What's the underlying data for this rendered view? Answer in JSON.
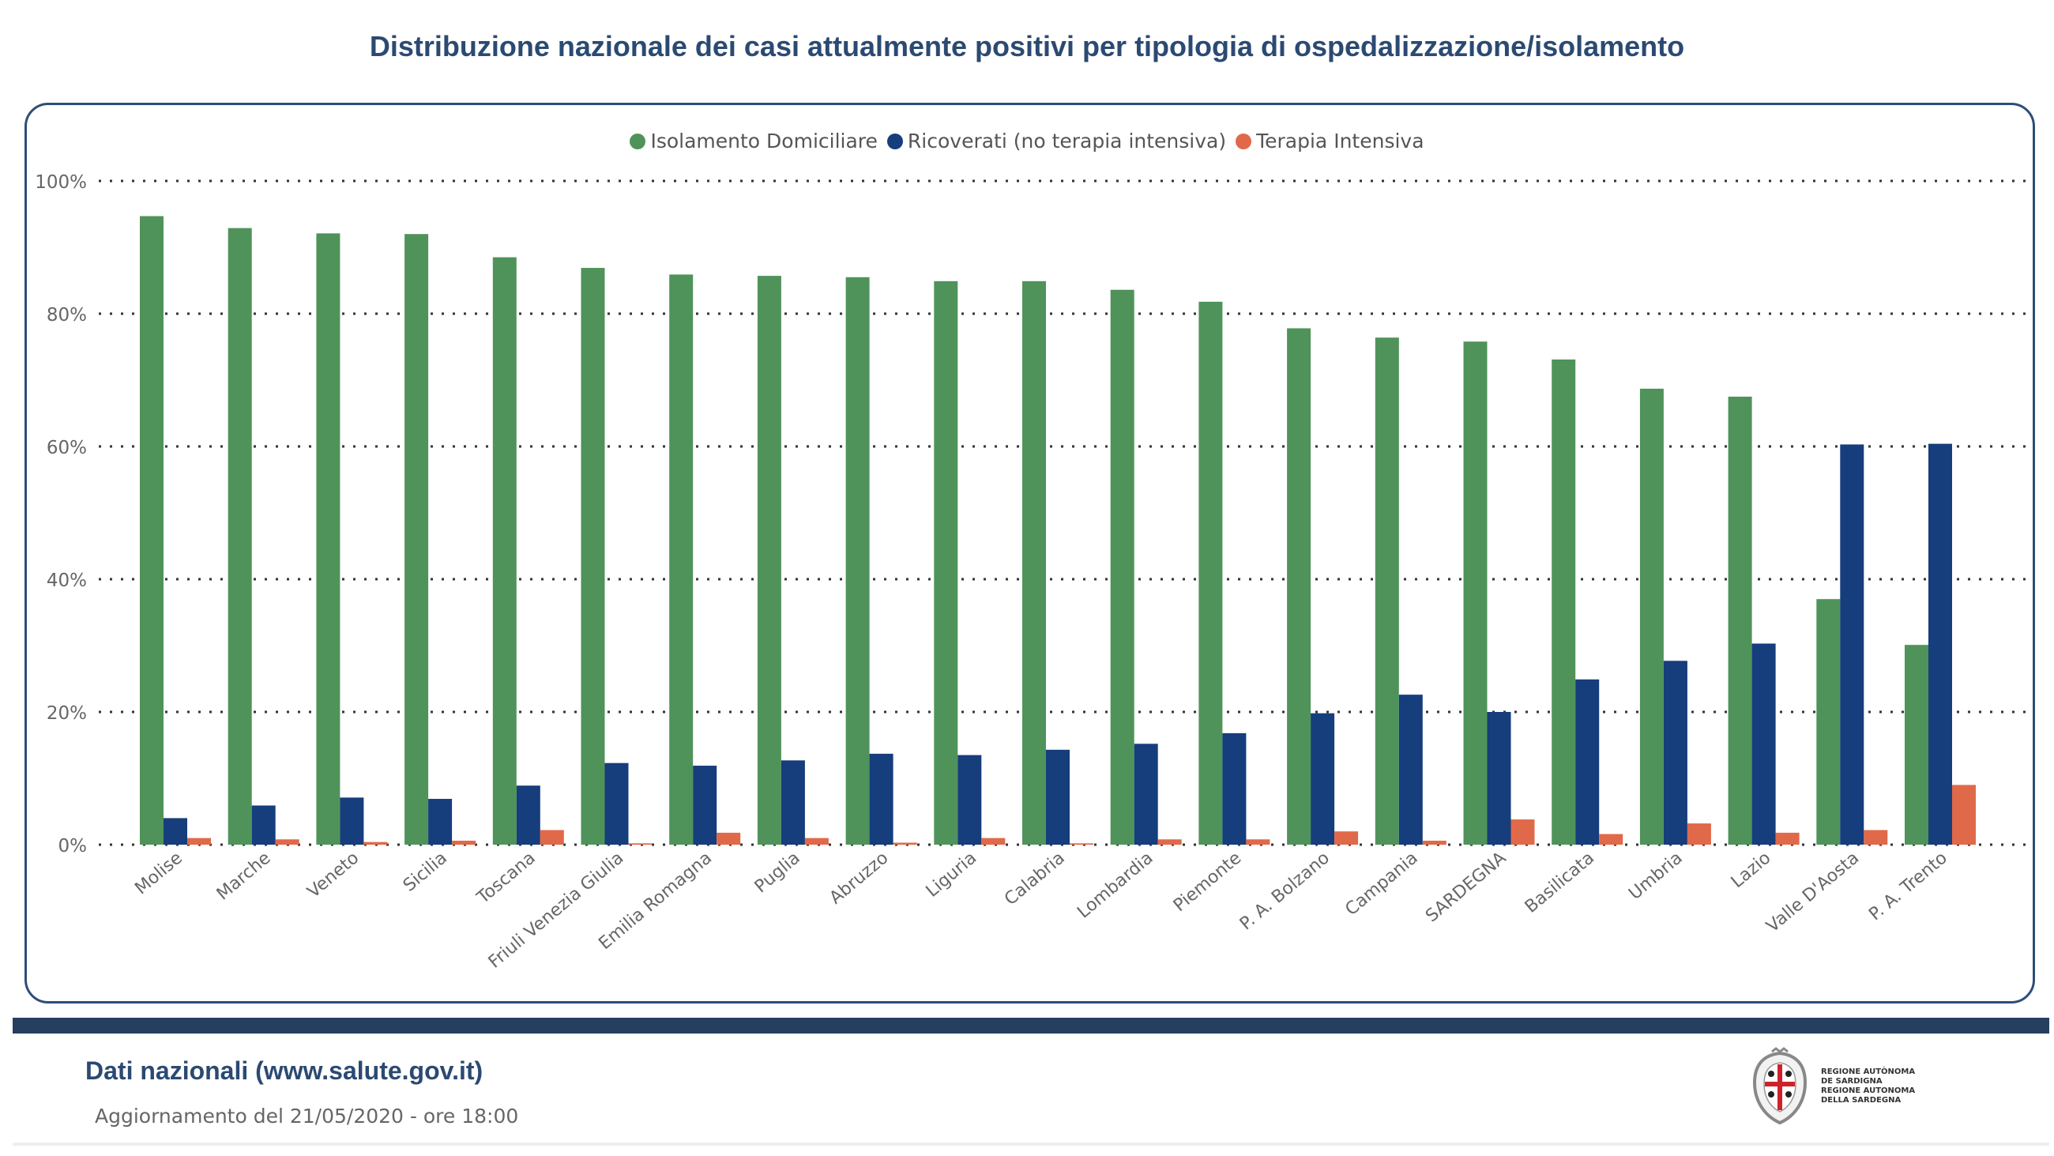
{
  "header": {
    "title": "Distribuzione nazionale dei casi attualmente positivi per tipologia di ospedalizzazione/isolamento"
  },
  "legend": [
    {
      "label": "Isolamento Domiciliare",
      "color": "#4f935a"
    },
    {
      "label": "Ricoverati (no terapia intensiva)",
      "color": "#163d7c"
    },
    {
      "label": "Terapia Intensiva",
      "color": "#e0694a"
    }
  ],
  "chart_data": {
    "type": "bar",
    "title": "Distribuzione nazionale dei casi attualmente positivi per tipologia di ospedalizzazione/isolamento",
    "xlabel": "",
    "ylabel": "",
    "ylim": [
      0,
      100
    ],
    "yticks": [
      "0%",
      "20%",
      "40%",
      "60%",
      "80%",
      "100%"
    ],
    "ytick_values": [
      0,
      20,
      40,
      60,
      80,
      100
    ],
    "grid": true,
    "legend_position": "top-center",
    "categories": [
      "Molise",
      "Marche",
      "Veneto",
      "Sicilia",
      "Toscana",
      "Friuli Venezia Giulia",
      "Emilia Romagna",
      "Puglia",
      "Abruzzo",
      "Liguria",
      "Calabria",
      "Lombardia",
      "Piemonte",
      "P. A. Bolzano",
      "Campania",
      "SARDEGNA",
      "Basilicata",
      "Umbria",
      "Lazio",
      "Valle D'Aosta",
      "P. A. Trento"
    ],
    "series": [
      {
        "name": "Isolamento Domiciliare",
        "color": "#4f935a",
        "values": [
          94.7,
          92.9,
          92.1,
          92.0,
          88.5,
          86.9,
          85.9,
          85.7,
          85.5,
          84.9,
          84.9,
          83.6,
          81.8,
          77.8,
          76.4,
          75.8,
          73.1,
          68.7,
          67.5,
          37.0,
          30.1
        ]
      },
      {
        "name": "Ricoverati (no terapia intensiva)",
        "color": "#163d7c",
        "values": [
          4.0,
          5.9,
          7.1,
          6.9,
          8.9,
          12.3,
          11.9,
          12.7,
          13.7,
          13.5,
          14.3,
          15.2,
          16.8,
          19.8,
          22.6,
          20.0,
          24.9,
          27.7,
          30.3,
          60.3,
          60.4
        ]
      },
      {
        "name": "Terapia Intensiva",
        "color": "#e0694a",
        "values": [
          1.0,
          0.8,
          0.4,
          0.6,
          2.2,
          0.2,
          1.8,
          1.0,
          0.3,
          1.0,
          0.2,
          0.8,
          0.8,
          2.0,
          0.6,
          3.8,
          1.6,
          3.2,
          1.8,
          2.2,
          9.0
        ]
      }
    ]
  },
  "footer": {
    "source": "Dati nazionali (www.salute.gov.it)",
    "updated": "Aggiornamento del 21/05/2020 - ore 18:00",
    "logo_lines": [
      "REGIONE AUTÒNOMA",
      "DE SARDIGNA",
      "REGIONE AUTONOMA",
      "DELLA SARDEGNA"
    ]
  }
}
